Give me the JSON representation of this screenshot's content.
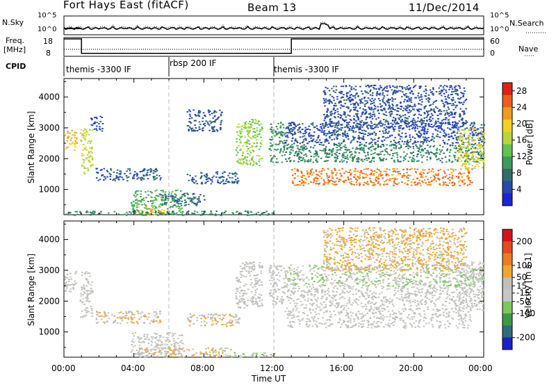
{
  "header": {
    "station": "Fort Hays East (fitACF)",
    "beam": "Beam 13",
    "date": "11/Dec/2014"
  },
  "noise_panel": {
    "left_label": "N.Sky",
    "right_label": "N.Search",
    "left_ticks": [
      "10^5",
      "10^0"
    ],
    "right_ticks": [
      "10^5",
      "10^0"
    ]
  },
  "freq_panel": {
    "left_label_top": "Freq.",
    "left_label_unit": "[MHz]",
    "right_label": "Nave",
    "left_ticks": [
      "18",
      "8"
    ],
    "right_ticks": [
      "60",
      "0"
    ]
  },
  "cpid_panel": {
    "label": "CPID",
    "segments": [
      {
        "label": "themis -3300 IF",
        "start_hour": 0,
        "end_hour": 6
      },
      {
        "label": "rbsp 200 IF",
        "start_hour": 6,
        "end_hour": 12
      },
      {
        "label": "themis -3300 IF",
        "start_hour": 12,
        "end_hour": 24
      }
    ]
  },
  "x_axis": {
    "label": "Time UT",
    "ticks": [
      "00:00",
      "04:00",
      "08:00",
      "12:00",
      "16:00",
      "20:00",
      "00:00"
    ]
  },
  "colors": {
    "power_scale": [
      "#1b25d8",
      "#2748b0",
      "#2f6d6a",
      "#3c9b5c",
      "#5fc452",
      "#b7d63a",
      "#f2d022",
      "#f09b1e",
      "#ee5e1a",
      "#e22016"
    ],
    "velocity_scale": [
      "#1a1fd0",
      "#2d6d7a",
      "#3b9b45",
      "#78c85a",
      "#c6c6c2",
      "#bfbfbc",
      "#f2a52b",
      "#ef7b20",
      "#e64a1c",
      "#d9121a"
    ]
  },
  "chart_data": [
    {
      "type": "heatmap",
      "title": "Power",
      "ylabel": "Slant Range [km]",
      "xlabel": "",
      "x_range_hours": [
        0,
        24
      ],
      "ylim": [
        180,
        4600
      ],
      "y_ticks": [
        1000,
        2000,
        3000,
        4000
      ],
      "colorbar": {
        "label": "Power [dB]",
        "range": [
          0,
          30
        ],
        "ticks": [
          4,
          8,
          12,
          16,
          20,
          24,
          28
        ]
      },
      "scatter_regions": [
        {
          "t0": 0.0,
          "t1": 0.7,
          "r0": 2300,
          "r1": 3000,
          "value": 21
        },
        {
          "t0": 0.9,
          "t1": 1.6,
          "r0": 1500,
          "r1": 3000,
          "value": 17
        },
        {
          "t0": 1.5,
          "t1": 2.2,
          "r0": 2900,
          "r1": 3400,
          "value": 5
        },
        {
          "t0": 1.8,
          "t1": 5.5,
          "r0": 1300,
          "r1": 1700,
          "value": 6
        },
        {
          "t0": 3.8,
          "t1": 6.8,
          "r0": 200,
          "r1": 1000,
          "value": 12
        },
        {
          "t0": 4.2,
          "t1": 6.0,
          "r0": 200,
          "r1": 450,
          "value": 21
        },
        {
          "t0": 0.0,
          "t1": 12.0,
          "r0": 180,
          "r1": 320,
          "value": 9
        },
        {
          "t0": 5.5,
          "t1": 8.0,
          "r0": 500,
          "r1": 900,
          "value": 7
        },
        {
          "t0": 7.0,
          "t1": 9.0,
          "r0": 2900,
          "r1": 3600,
          "value": 5
        },
        {
          "t0": 7.0,
          "t1": 10.0,
          "r0": 1200,
          "r1": 1600,
          "value": 6
        },
        {
          "t0": 9.8,
          "t1": 11.3,
          "r0": 1800,
          "r1": 3300,
          "value": 15
        },
        {
          "t0": 11.7,
          "t1": 12.6,
          "r0": 1900,
          "r1": 3200,
          "value": 10
        },
        {
          "t0": 12.6,
          "t1": 24.0,
          "r0": 2500,
          "r1": 3200,
          "value": 5
        },
        {
          "t0": 12.6,
          "t1": 24.0,
          "r0": 1900,
          "r1": 2500,
          "value": 9
        },
        {
          "t0": 13.0,
          "t1": 23.3,
          "r0": 1150,
          "r1": 1700,
          "value": 24
        },
        {
          "t0": 22.5,
          "t1": 24.0,
          "r0": 1700,
          "r1": 3000,
          "value": 18
        },
        {
          "t0": 14.8,
          "t1": 23.0,
          "r0": 3000,
          "r1": 4400,
          "value": 5
        }
      ]
    },
    {
      "type": "heatmap",
      "title": "Velocity",
      "ylabel": "Slant Range [km]",
      "xlabel": "Time UT",
      "x_range_hours": [
        0,
        24
      ],
      "ylim": [
        180,
        4600
      ],
      "y_ticks": [
        1000,
        2000,
        3000,
        4000
      ],
      "colorbar": {
        "label": "Velocity [m s-1]",
        "range": [
          -250,
          250
        ],
        "ticks": [
          200,
          100,
          50,
          15,
          -15,
          -50,
          -100,
          -200
        ]
      },
      "scatter_regions": [
        {
          "t0": 0.0,
          "t1": 0.7,
          "r0": 2300,
          "r1": 3000,
          "value": 0
        },
        {
          "t0": 0.9,
          "t1": 1.6,
          "r0": 1500,
          "r1": 3000,
          "value": 0
        },
        {
          "t0": 1.8,
          "t1": 5.5,
          "r0": 1300,
          "r1": 1700,
          "value": 40
        },
        {
          "t0": 3.8,
          "t1": 6.8,
          "r0": 300,
          "r1": 1000,
          "value": 0
        },
        {
          "t0": 4.2,
          "t1": 9.5,
          "r0": 200,
          "r1": 500,
          "value": 40
        },
        {
          "t0": 7.0,
          "t1": 10.0,
          "r0": 1200,
          "r1": 1600,
          "value": 40
        },
        {
          "t0": 9.5,
          "t1": 12.0,
          "r0": 180,
          "r1": 350,
          "value": -60
        },
        {
          "t0": 9.8,
          "t1": 11.3,
          "r0": 1800,
          "r1": 3300,
          "value": 20
        },
        {
          "t0": 11.7,
          "t1": 12.6,
          "r0": 1900,
          "r1": 3200,
          "value": 0
        },
        {
          "t0": 12.6,
          "t1": 23.3,
          "r0": 1150,
          "r1": 2500,
          "value": 0
        },
        {
          "t0": 22.5,
          "t1": 24.0,
          "r0": 1700,
          "r1": 3300,
          "value": 0
        },
        {
          "t0": 12.6,
          "t1": 24.0,
          "r0": 2500,
          "r1": 3200,
          "value": -40
        },
        {
          "t0": 14.8,
          "t1": 23.0,
          "r0": 3000,
          "r1": 4400,
          "value": 60
        }
      ]
    }
  ]
}
